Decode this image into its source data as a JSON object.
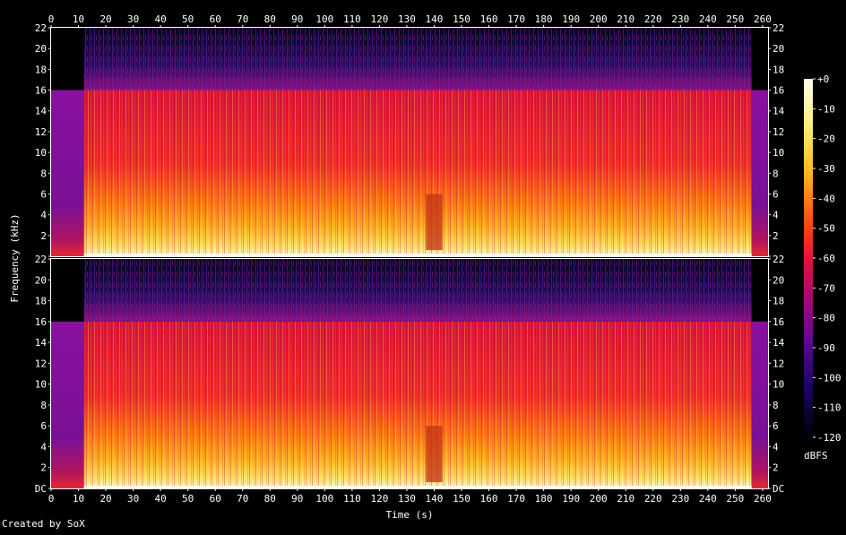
{
  "chart_data": {
    "type": "heatmap",
    "title": "",
    "xlabel": "Time (s)",
    "ylabel": "Frequency (kHz)",
    "xlim": [
      0,
      262
    ],
    "ylim": [
      0,
      22
    ],
    "x_ticks": [
      0,
      10,
      20,
      30,
      40,
      50,
      60,
      70,
      80,
      90,
      100,
      110,
      120,
      130,
      140,
      150,
      160,
      170,
      180,
      190,
      200,
      210,
      220,
      230,
      240,
      250,
      260
    ],
    "y_ticks": [
      "DC",
      "2",
      "4",
      "6",
      "8",
      "10",
      "12",
      "14",
      "16",
      "18",
      "20",
      "22"
    ],
    "channels": 2,
    "colorbar": {
      "label": "dBFS",
      "ticks": [
        "+0",
        "-10",
        "-20",
        "-30",
        "-40",
        "-50",
        "-60",
        "-70",
        "-80",
        "-90",
        "-100",
        "-110",
        "-120"
      ],
      "range": [
        -120,
        0
      ]
    },
    "low_pass_region_khz": 16,
    "intro_end_s": 12,
    "outro_start_s": 256,
    "dip_region_s": [
      137,
      143
    ]
  },
  "footer": "Created by SoX",
  "colors": {
    "background": "#000000",
    "high": "#ffffee",
    "mid": "#ff2222",
    "low": "#000022"
  }
}
